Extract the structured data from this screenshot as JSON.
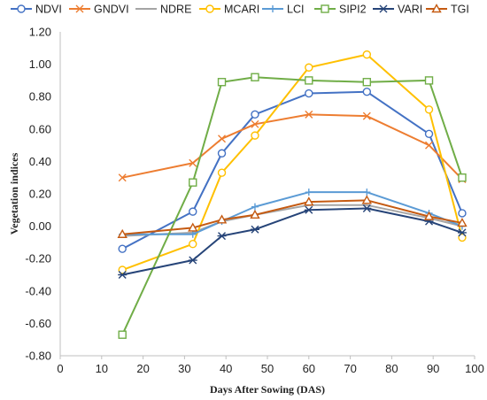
{
  "chart_data": {
    "type": "line",
    "xlabel": "Days After Sowing (DAS)",
    "ylabel": "Vegetation indices",
    "xlim": [
      0,
      100
    ],
    "ylim": [
      -0.8,
      1.2
    ],
    "x_ticks": [
      "0",
      "10",
      "20",
      "30",
      "40",
      "50",
      "60",
      "70",
      "80",
      "90",
      "100"
    ],
    "y_ticks": [
      "-0.80",
      "-0.60",
      "-0.40",
      "-0.20",
      "0.00",
      "0.20",
      "0.40",
      "0.60",
      "0.80",
      "1.00",
      "1.20"
    ],
    "grid": false,
    "legend_position": "top",
    "x": [
      15,
      32,
      39,
      47,
      60,
      74,
      89,
      97
    ],
    "series": [
      {
        "name": "NDVI",
        "color": "#4472C4",
        "marker": "circle",
        "values": [
          -0.14,
          0.09,
          0.45,
          0.69,
          0.82,
          0.83,
          0.57,
          0.08
        ]
      },
      {
        "name": "GNDVI",
        "color": "#ED7D31",
        "marker": "x",
        "values": [
          0.3,
          0.39,
          0.54,
          0.63,
          0.69,
          0.68,
          0.5,
          0.29
        ]
      },
      {
        "name": "NDRE",
        "color": "#A5A5A5",
        "marker": "line",
        "values": [
          -0.06,
          -0.04,
          0.03,
          0.07,
          0.13,
          0.13,
          0.05,
          0.0
        ]
      },
      {
        "name": "MCARI",
        "color": "#FFC000",
        "marker": "circle",
        "values": [
          -0.27,
          -0.11,
          0.33,
          0.56,
          0.98,
          1.06,
          0.72,
          -0.07
        ]
      },
      {
        "name": "LCI",
        "color": "#5B9BD5",
        "marker": "plus",
        "values": [
          -0.05,
          -0.05,
          0.03,
          0.12,
          0.21,
          0.21,
          0.08,
          0.0
        ]
      },
      {
        "name": "SIPI2",
        "color": "#70AD47",
        "marker": "square",
        "values": [
          -0.67,
          0.27,
          0.89,
          0.92,
          0.9,
          0.89,
          0.9,
          0.3
        ]
      },
      {
        "name": "VARI",
        "color": "#264478",
        "marker": "asterisk",
        "values": [
          -0.3,
          -0.21,
          -0.06,
          -0.02,
          0.1,
          0.11,
          0.03,
          -0.04
        ]
      },
      {
        "name": "TGI",
        "color": "#C55A11",
        "marker": "triangle",
        "values": [
          -0.05,
          -0.01,
          0.04,
          0.07,
          0.15,
          0.16,
          0.06,
          0.02
        ]
      }
    ]
  }
}
